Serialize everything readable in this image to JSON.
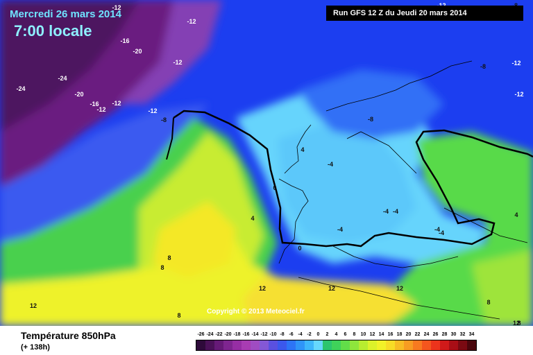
{
  "header": {
    "date": "Mercredi 26 mars 2014",
    "time": "7:00 locale",
    "run": "Run GFS 12 Z du Jeudi 20 mars 2014"
  },
  "copyright": "Copyright © 2013 Meteociel.fr",
  "footer": {
    "parameter": "Température 850hPa",
    "lead_time": "(+ 138h)"
  },
  "legend": {
    "values": [
      "-26",
      "-24",
      "-22",
      "-20",
      "-18",
      "-16",
      "-14",
      "-12",
      "-10",
      "-8",
      "-6",
      "-4",
      "-2",
      "0",
      "2",
      "4",
      "6",
      "8",
      "10",
      "12",
      "14",
      "16",
      "18",
      "20",
      "22",
      "24",
      "26",
      "28",
      "30",
      "32",
      "34"
    ],
    "colors": [
      "#2e0a3a",
      "#4a1158",
      "#661a77",
      "#7e2590",
      "#962ea4",
      "#a83cb2",
      "#a04cc2",
      "#8458d6",
      "#5a50e0",
      "#3b58ec",
      "#2d74f6",
      "#2f94f8",
      "#3eb6fa",
      "#66d8fc",
      "#2cc56e",
      "#3fd25a",
      "#62de49",
      "#8ee63c",
      "#b8ec30",
      "#dcf22a",
      "#f2f228",
      "#f8dc26",
      "#f8bc24",
      "#f89c22",
      "#f87a20",
      "#f4561e",
      "#ec341c",
      "#d01a1a",
      "#a80e16",
      "#7a0a12",
      "#4a060c"
    ]
  },
  "isotherm_labels": [
    "-12",
    "-16",
    "-20",
    "-24",
    "-24",
    "-20",
    "-16",
    "-12",
    "-12",
    "-12",
    "-12",
    "-8",
    "-8",
    "-12",
    "-12",
    "-8",
    "-12",
    "-12",
    "-8",
    "-4",
    "0",
    "4",
    "8",
    "8",
    "4",
    "0",
    "-4",
    "-4",
    "-4",
    "-4",
    "-4",
    "4",
    "8",
    "12",
    "12",
    "12",
    "8",
    "8",
    "12",
    "12"
  ]
}
